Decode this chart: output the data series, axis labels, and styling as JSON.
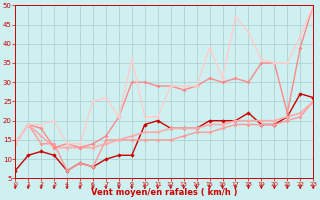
{
  "xlabel": "Vent moyen/en rafales ( km/h )",
  "xlim": [
    0,
    23
  ],
  "ylim": [
    5,
    50
  ],
  "yticks": [
    5,
    10,
    15,
    20,
    25,
    30,
    35,
    40,
    45,
    50
  ],
  "xticks": [
    0,
    1,
    2,
    3,
    4,
    5,
    6,
    7,
    8,
    9,
    10,
    11,
    12,
    13,
    14,
    15,
    16,
    17,
    18,
    19,
    20,
    21,
    22,
    23
  ],
  "bg_color": "#cef0f0",
  "grid_color": "#aacccc",
  "series": [
    {
      "x": [
        0,
        1,
        2,
        3,
        4,
        5,
        6,
        7,
        8,
        9,
        10,
        11,
        12,
        13,
        14,
        15,
        16,
        17,
        18,
        19,
        20,
        21,
        22,
        23
      ],
      "y": [
        7,
        11,
        12,
        11,
        7,
        9,
        8,
        10,
        11,
        11,
        19,
        20,
        18,
        18,
        18,
        20,
        20,
        20,
        22,
        19,
        19,
        21,
        27,
        26
      ],
      "color": "#cc0000",
      "lw": 1.0,
      "marker": "D",
      "ms": 2.2
    },
    {
      "x": [
        0,
        1,
        2,
        3,
        4,
        5,
        6,
        7,
        8,
        9,
        10,
        11,
        12,
        13,
        14,
        15,
        16,
        17,
        18,
        19,
        20,
        21,
        22,
        23
      ],
      "y": [
        14,
        19,
        14,
        14,
        7,
        9,
        8,
        15,
        15,
        15,
        15,
        15,
        15,
        16,
        17,
        17,
        18,
        19,
        19,
        19,
        19,
        20,
        21,
        25
      ],
      "color": "#ff9999",
      "lw": 1.0,
      "marker": "D",
      "ms": 2.0
    },
    {
      "x": [
        0,
        1,
        2,
        3,
        4,
        5,
        6,
        7,
        8,
        9,
        10,
        11,
        12,
        13,
        14,
        15,
        16,
        17,
        18,
        19,
        20,
        21,
        22,
        23
      ],
      "y": [
        14,
        19,
        16,
        13,
        13,
        13,
        13,
        14,
        15,
        16,
        17,
        17,
        18,
        18,
        18,
        19,
        19,
        20,
        20,
        20,
        20,
        21,
        22,
        25
      ],
      "color": "#ffaaaa",
      "lw": 1.2,
      "marker": "D",
      "ms": 2.0
    },
    {
      "x": [
        0,
        1,
        2,
        3,
        4,
        5,
        6,
        7,
        8,
        9,
        10,
        11,
        12,
        13,
        14,
        15,
        16,
        17,
        18,
        19,
        20,
        21,
        22,
        23
      ],
      "y": [
        14,
        19,
        18,
        13,
        14,
        13,
        14,
        16,
        21,
        30,
        30,
        29,
        29,
        28,
        29,
        31,
        30,
        31,
        30,
        35,
        35,
        22,
        39,
        50
      ],
      "color": "#ff8888",
      "lw": 1.0,
      "marker": "D",
      "ms": 2.0
    },
    {
      "x": [
        0,
        1,
        2,
        3,
        4,
        5,
        6,
        7,
        8,
        9,
        10,
        11,
        12,
        13,
        14,
        15,
        16,
        17,
        18,
        19,
        20,
        21,
        22,
        23
      ],
      "y": [
        14,
        19,
        19,
        20,
        14,
        14,
        25,
        26,
        21,
        36,
        21,
        21,
        29,
        29,
        29,
        39,
        31,
        47,
        43,
        36,
        35,
        35,
        42,
        50
      ],
      "color": "#ffcccc",
      "lw": 1.0,
      "marker": "D",
      "ms": 1.8
    }
  ],
  "arrow_color": "#cc0000",
  "axis_color": "#cc0000",
  "tick_color": "#cc0000",
  "label_color": "#cc0000"
}
